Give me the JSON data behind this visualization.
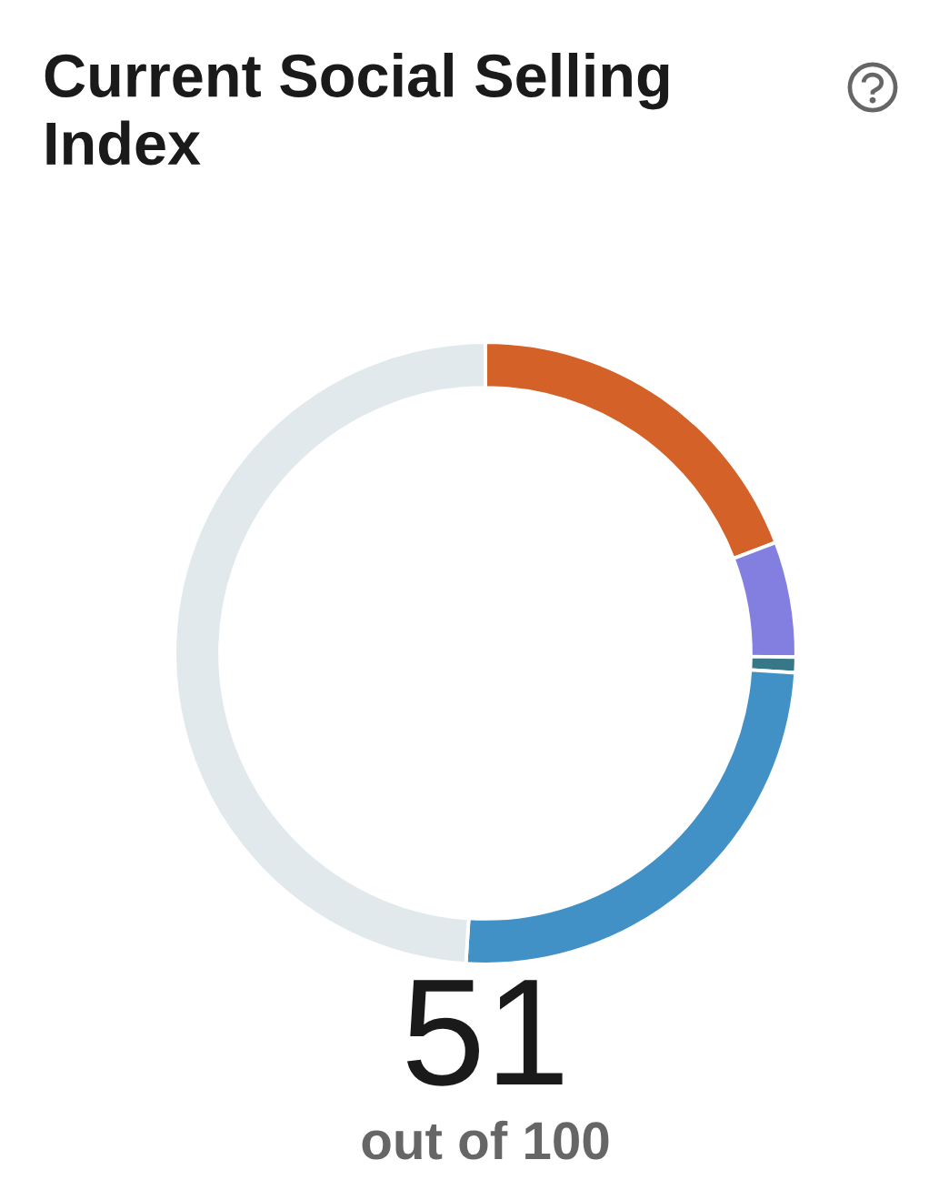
{
  "chart_data": {
    "type": "donut",
    "title": "Current Social Selling Index",
    "categories": [
      null,
      null,
      null,
      null,
      null
    ],
    "values": [
      19.2,
      6.0,
      0.8,
      25.0,
      49.0
    ],
    "colors": [
      "#d36128",
      "#837fe0",
      "#367888",
      "#4190c6",
      "#e1e9ed"
    ],
    "annotations": [
      "51",
      "out of 100"
    ]
  }
}
